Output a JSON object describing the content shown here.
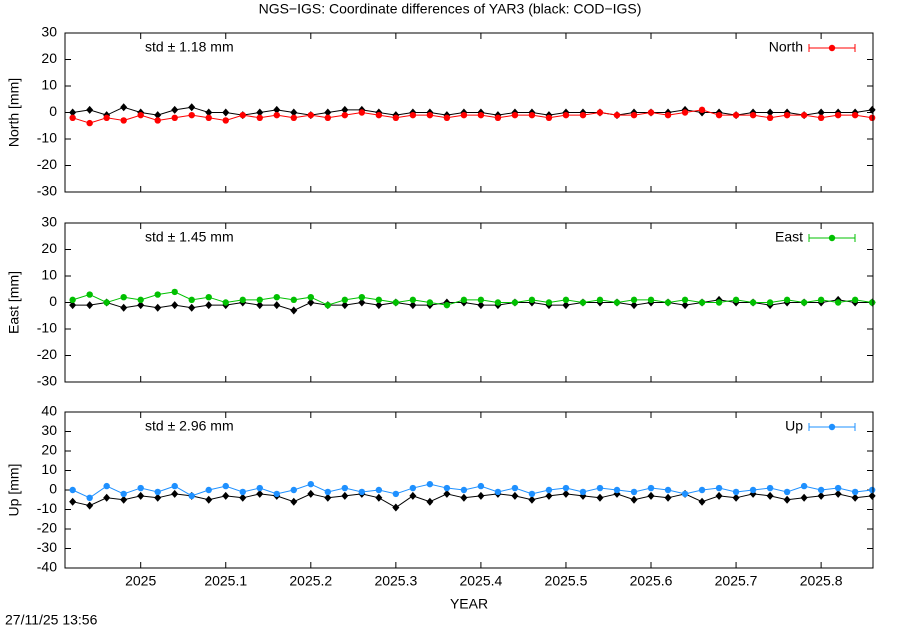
{
  "title": "NGS−IGS: Coordinate differences of YAR3 (black: COD−IGS)",
  "timestamp": "27/11/25 13:56",
  "chart_data": [
    {
      "type": "line",
      "y_label": "North [mm]",
      "annotation": "std ± 1.18 mm",
      "legend": "upper right",
      "xlim": [
        2024.911,
        2025.861
      ],
      "ylim": [
        -30,
        30
      ],
      "yticks": [
        -30,
        -20,
        -10,
        0,
        10,
        20,
        30
      ],
      "x": [
        2024.92,
        2024.94,
        2024.96,
        2024.98,
        2025,
        2025.02,
        2025.04,
        2025.06,
        2025.08,
        2025.1,
        2025.12,
        2025.14,
        2025.16,
        2025.18,
        2025.2,
        2025.22,
        2025.24,
        2025.26,
        2025.28,
        2025.3,
        2025.32,
        2025.34,
        2025.36,
        2025.38,
        2025.4,
        2025.42,
        2025.44,
        2025.46,
        2025.48,
        2025.5,
        2025.52,
        2025.54,
        2025.56,
        2025.58,
        2025.6,
        2025.62,
        2025.64,
        2025.66,
        2025.68,
        2025.7,
        2025.72,
        2025.74,
        2025.76,
        2025.78,
        2025.8,
        2025.82,
        2025.84,
        2025.86
      ],
      "series": [
        {
          "color": "#000000",
          "values": [
            0,
            1,
            -1,
            2,
            0,
            -1,
            1,
            2,
            0,
            0,
            -1,
            0,
            1,
            0,
            -1,
            0,
            1,
            1,
            0,
            -1,
            0,
            0,
            -1,
            0,
            0,
            -1,
            0,
            0,
            -1,
            0,
            0,
            0,
            -1,
            0,
            0,
            0,
            1,
            0,
            0,
            -1,
            0,
            0,
            0,
            -1,
            0,
            0,
            0,
            1
          ]
        },
        {
          "name": "North",
          "color": "#ff0000",
          "values": [
            -2,
            -4,
            -2,
            -3,
            -1,
            -3,
            -2,
            -1,
            -2,
            -3,
            -1,
            -2,
            -1,
            -2,
            -1,
            -2,
            -1,
            0,
            -1,
            -2,
            -1,
            -1,
            -2,
            -1,
            -1,
            -2,
            -1,
            -1,
            -2,
            -1,
            -1,
            0,
            -1,
            -1,
            0,
            -1,
            0,
            1,
            -1,
            -1,
            -1,
            -2,
            -1,
            -1,
            -2,
            -1,
            -1,
            -2
          ]
        }
      ]
    },
    {
      "type": "line",
      "y_label": "East [mm]",
      "annotation": "std ± 1.45 mm",
      "legend": "upper right",
      "xlim": [
        2024.911,
        2025.861
      ],
      "ylim": [
        -30,
        30
      ],
      "yticks": [
        -30,
        -20,
        -10,
        0,
        10,
        20,
        30
      ],
      "x": [
        2024.92,
        2024.94,
        2024.96,
        2024.98,
        2025,
        2025.02,
        2025.04,
        2025.06,
        2025.08,
        2025.1,
        2025.12,
        2025.14,
        2025.16,
        2025.18,
        2025.2,
        2025.22,
        2025.24,
        2025.26,
        2025.28,
        2025.3,
        2025.32,
        2025.34,
        2025.36,
        2025.38,
        2025.4,
        2025.42,
        2025.44,
        2025.46,
        2025.48,
        2025.5,
        2025.52,
        2025.54,
        2025.56,
        2025.58,
        2025.6,
        2025.62,
        2025.64,
        2025.66,
        2025.68,
        2025.7,
        2025.72,
        2025.74,
        2025.76,
        2025.78,
        2025.8,
        2025.82,
        2025.84,
        2025.86
      ],
      "series": [
        {
          "color": "#000000",
          "values": [
            -1,
            -1,
            0,
            -2,
            -1,
            -2,
            -1,
            -2,
            -1,
            -1,
            0,
            -1,
            -1,
            -3,
            0,
            -1,
            -1,
            0,
            -1,
            0,
            -1,
            -1,
            0,
            0,
            -1,
            -1,
            0,
            0,
            -1,
            -1,
            0,
            0,
            0,
            -1,
            0,
            0,
            -1,
            0,
            1,
            0,
            0,
            -1,
            0,
            0,
            0,
            1,
            0,
            0
          ]
        },
        {
          "name": "East",
          "color": "#00c000",
          "values": [
            1,
            3,
            0,
            2,
            1,
            3,
            4,
            1,
            2,
            0,
            1,
            1,
            2,
            1,
            2,
            -1,
            1,
            2,
            1,
            0,
            1,
            0,
            -1,
            1,
            1,
            0,
            0,
            1,
            0,
            1,
            0,
            1,
            0,
            1,
            1,
            0,
            1,
            0,
            0,
            1,
            0,
            0,
            1,
            0,
            1,
            0,
            1,
            0
          ]
        }
      ]
    },
    {
      "type": "line",
      "y_label": "Up [mm]",
      "x_label": "YEAR",
      "annotation": "std ± 2.96 mm",
      "legend": "upper right",
      "xlim": [
        2024.911,
        2025.861
      ],
      "xticks": [
        2025,
        2025.1,
        2025.2,
        2025.3,
        2025.4,
        2025.5,
        2025.6,
        2025.7,
        2025.8
      ],
      "ylim": [
        -40,
        40
      ],
      "yticks": [
        -40,
        -30,
        -20,
        -10,
        0,
        10,
        20,
        30,
        40
      ],
      "x": [
        2024.92,
        2024.94,
        2024.96,
        2024.98,
        2025,
        2025.02,
        2025.04,
        2025.06,
        2025.08,
        2025.1,
        2025.12,
        2025.14,
        2025.16,
        2025.18,
        2025.2,
        2025.22,
        2025.24,
        2025.26,
        2025.28,
        2025.3,
        2025.32,
        2025.34,
        2025.36,
        2025.38,
        2025.4,
        2025.42,
        2025.44,
        2025.46,
        2025.48,
        2025.5,
        2025.52,
        2025.54,
        2025.56,
        2025.58,
        2025.6,
        2025.62,
        2025.64,
        2025.66,
        2025.68,
        2025.7,
        2025.72,
        2025.74,
        2025.76,
        2025.78,
        2025.8,
        2025.82,
        2025.84,
        2025.86
      ],
      "series": [
        {
          "color": "#000000",
          "values": [
            -6,
            -8,
            -4,
            -5,
            -3,
            -4,
            -2,
            -3,
            -5,
            -3,
            -4,
            -2,
            -3,
            -6,
            -2,
            -4,
            -3,
            -2,
            -4,
            -9,
            -3,
            -6,
            -2,
            -4,
            -3,
            -2,
            -3,
            -5,
            -3,
            -2,
            -3,
            -4,
            -2,
            -5,
            -3,
            -4,
            -2,
            -6,
            -3,
            -4,
            -2,
            -3,
            -5,
            -4,
            -3,
            -2,
            -4,
            -3
          ]
        },
        {
          "name": "Up",
          "color": "#1e90ff",
          "values": [
            0,
            -4,
            2,
            -2,
            1,
            -1,
            2,
            -3,
            0,
            2,
            -1,
            1,
            -2,
            0,
            3,
            -1,
            1,
            -1,
            0,
            -2,
            1,
            3,
            1,
            0,
            2,
            -1,
            1,
            -2,
            0,
            1,
            -1,
            1,
            0,
            -1,
            1,
            0,
            -2,
            0,
            1,
            -1,
            0,
            1,
            -1,
            2,
            0,
            1,
            -1,
            0
          ]
        }
      ]
    }
  ]
}
